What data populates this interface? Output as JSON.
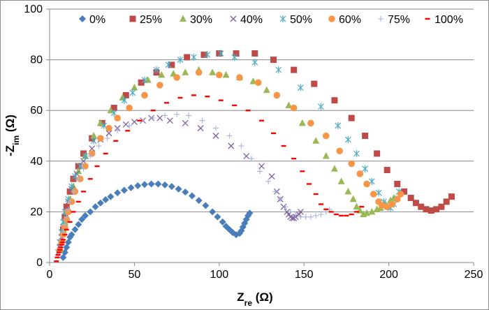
{
  "chart_data": {
    "type": "scatter",
    "xlabel": {
      "main": "Z",
      "sub": "re",
      "unit": " (Ω)"
    },
    "ylabel": {
      "main": "-Z",
      "sub": "im",
      "unit": " (Ω)"
    },
    "xlim": [
      0,
      250
    ],
    "ylim": [
      0,
      100
    ],
    "x_ticks": [
      0,
      50,
      100,
      150,
      200,
      250
    ],
    "y_ticks": [
      0,
      20,
      40,
      60,
      80,
      100
    ],
    "grid": "horizontal",
    "legend_position": "top",
    "series": [
      {
        "name": "0%",
        "marker": "diamond",
        "color": "#4a7ebb",
        "points": [
          [
            8,
            2
          ],
          [
            9,
            4
          ],
          [
            10,
            6
          ],
          [
            11,
            8
          ],
          [
            12,
            10
          ],
          [
            13,
            11
          ],
          [
            15,
            13
          ],
          [
            17,
            15
          ],
          [
            19,
            17
          ],
          [
            21,
            18.5
          ],
          [
            24,
            20
          ],
          [
            27,
            22
          ],
          [
            30,
            23.5
          ],
          [
            33,
            24.8
          ],
          [
            36,
            26
          ],
          [
            40,
            27.5
          ],
          [
            44,
            28.5
          ],
          [
            48,
            29.5
          ],
          [
            52,
            30.3
          ],
          [
            56,
            30.8
          ],
          [
            60,
            31
          ],
          [
            64,
            31
          ],
          [
            68,
            30.6
          ],
          [
            72,
            30
          ],
          [
            76,
            29
          ],
          [
            80,
            27.8
          ],
          [
            84,
            26.3
          ],
          [
            88,
            24.5
          ],
          [
            92,
            22.5
          ],
          [
            96,
            20
          ],
          [
            99,
            18
          ],
          [
            102,
            16
          ],
          [
            104,
            14.3
          ],
          [
            106,
            13
          ],
          [
            108,
            11.8
          ],
          [
            110,
            11
          ],
          [
            112,
            11.5
          ],
          [
            113,
            12.5
          ],
          [
            114,
            14
          ],
          [
            115,
            15.5
          ],
          [
            116,
            17
          ],
          [
            117,
            18.5
          ],
          [
            118,
            19.5
          ]
        ]
      },
      {
        "name": "25%",
        "marker": "square",
        "color": "#be4b48",
        "points": [
          [
            7,
            8
          ],
          [
            8,
            13
          ],
          [
            9,
            18
          ],
          [
            10,
            22
          ],
          [
            12,
            28
          ],
          [
            14,
            33
          ],
          [
            17,
            38
          ],
          [
            20,
            43
          ],
          [
            25,
            49
          ],
          [
            31,
            55
          ],
          [
            38,
            61
          ],
          [
            45,
            66
          ],
          [
            54,
            71
          ],
          [
            63,
            75
          ],
          [
            72,
            78
          ],
          [
            81,
            81
          ],
          [
            91,
            82
          ],
          [
            100,
            82.5
          ],
          [
            110,
            82.5
          ],
          [
            121,
            82.5
          ],
          [
            132,
            80
          ],
          [
            144,
            76
          ],
          [
            156,
            70.5
          ],
          [
            168,
            64
          ],
          [
            178,
            57
          ],
          [
            186,
            50
          ],
          [
            193,
            43
          ],
          [
            199,
            36.5
          ],
          [
            205,
            31
          ],
          [
            209,
            28
          ],
          [
            213,
            25.5
          ],
          [
            216,
            23.5
          ],
          [
            219,
            22
          ],
          [
            222,
            21
          ],
          [
            225,
            20.5
          ],
          [
            228,
            21
          ],
          [
            231,
            22
          ],
          [
            234,
            24
          ],
          [
            237,
            26
          ]
        ]
      },
      {
        "name": "30%",
        "marker": "triangle",
        "color": "#98b954",
        "points": [
          [
            6,
            5
          ],
          [
            7,
            9
          ],
          [
            8,
            13
          ],
          [
            9,
            16
          ],
          [
            10,
            20
          ],
          [
            12,
            25
          ],
          [
            14,
            30
          ],
          [
            17,
            36
          ],
          [
            21,
            42
          ],
          [
            26,
            50
          ],
          [
            30,
            55
          ],
          [
            36,
            60
          ],
          [
            43,
            65
          ],
          [
            50,
            69
          ],
          [
            58,
            72
          ],
          [
            66,
            74
          ],
          [
            73,
            74.5
          ],
          [
            80,
            75
          ],
          [
            88,
            76
          ],
          [
            96,
            75
          ],
          [
            104,
            74
          ],
          [
            112,
            73
          ],
          [
            120,
            71.5
          ],
          [
            128,
            68
          ],
          [
            141,
            62
          ],
          [
            149,
            55
          ],
          [
            157,
            48
          ],
          [
            163,
            42
          ],
          [
            168,
            37
          ],
          [
            172,
            32
          ],
          [
            176,
            28
          ],
          [
            179,
            25
          ],
          [
            181,
            22
          ],
          [
            183,
            20.5
          ],
          [
            185,
            19
          ],
          [
            187,
            19.5
          ],
          [
            190,
            20
          ],
          [
            193,
            21
          ],
          [
            195,
            21.5
          ],
          [
            198,
            23
          ],
          [
            201,
            24.5
          ],
          [
            203,
            25.5
          ]
        ]
      },
      {
        "name": "40%",
        "marker": "x",
        "color": "#7d60a0",
        "points": [
          [
            6,
            6
          ],
          [
            7,
            10
          ],
          [
            8,
            14
          ],
          [
            9,
            18
          ],
          [
            11,
            24
          ],
          [
            13,
            29
          ],
          [
            16,
            35
          ],
          [
            20,
            40
          ],
          [
            25,
            45
          ],
          [
            30,
            48.5
          ],
          [
            35,
            51
          ],
          [
            40,
            53
          ],
          [
            45,
            54.5
          ],
          [
            50,
            55.5
          ],
          [
            55,
            56
          ],
          [
            60,
            57
          ],
          [
            65,
            57
          ],
          [
            71,
            56
          ],
          [
            80,
            55
          ],
          [
            89,
            53
          ],
          [
            98,
            50
          ],
          [
            107,
            46
          ],
          [
            116,
            42
          ],
          [
            125,
            38
          ],
          [
            131,
            34
          ],
          [
            134,
            28
          ],
          [
            136,
            25
          ],
          [
            138,
            22
          ],
          [
            140,
            20
          ],
          [
            141,
            19
          ],
          [
            142,
            18
          ],
          [
            143,
            17.5
          ],
          [
            144,
            17.5
          ],
          [
            145,
            18
          ],
          [
            147,
            19
          ],
          [
            148,
            20
          ]
        ]
      },
      {
        "name": "50%",
        "marker": "asterisk",
        "color": "#4bacc6",
        "points": [
          [
            5,
            4
          ],
          [
            6,
            8
          ],
          [
            7,
            12
          ],
          [
            8,
            16
          ],
          [
            9,
            20
          ],
          [
            11,
            25
          ],
          [
            13,
            30
          ],
          [
            15,
            34
          ],
          [
            18,
            38
          ],
          [
            21,
            42
          ],
          [
            26,
            48
          ],
          [
            32,
            54
          ],
          [
            38,
            59
          ],
          [
            44,
            64
          ],
          [
            49,
            67
          ],
          [
            56,
            72
          ],
          [
            63,
            76
          ],
          [
            70,
            78
          ],
          [
            77,
            80
          ],
          [
            85,
            81
          ],
          [
            93,
            82
          ],
          [
            101,
            82.5
          ],
          [
            109,
            81
          ],
          [
            121,
            79
          ],
          [
            135,
            76
          ],
          [
            148,
            69
          ],
          [
            160,
            61.5
          ],
          [
            170,
            54
          ],
          [
            176,
            48.5
          ],
          [
            181,
            43
          ],
          [
            186,
            37
          ],
          [
            190,
            32
          ],
          [
            194,
            27.5
          ],
          [
            197,
            24
          ],
          [
            199,
            22
          ],
          [
            201,
            21.5
          ],
          [
            203,
            23
          ],
          [
            204,
            25
          ],
          [
            206,
            28
          ]
        ]
      },
      {
        "name": "60%",
        "marker": "circle",
        "color": "#f79646",
        "points": [
          [
            6,
            5
          ],
          [
            7,
            8
          ],
          [
            8,
            11
          ],
          [
            9,
            14
          ],
          [
            10,
            17
          ],
          [
            11,
            20
          ],
          [
            13,
            24
          ],
          [
            15,
            28
          ],
          [
            18,
            33
          ],
          [
            21,
            38
          ],
          [
            25,
            43
          ],
          [
            30,
            49
          ],
          [
            35,
            53
          ],
          [
            40,
            57
          ],
          [
            47,
            61
          ],
          [
            56,
            66
          ],
          [
            65,
            70
          ],
          [
            75,
            73
          ],
          [
            88,
            75
          ],
          [
            100,
            74
          ],
          [
            112,
            73
          ],
          [
            123,
            71
          ],
          [
            134,
            66
          ],
          [
            144,
            61
          ],
          [
            154,
            55
          ],
          [
            163,
            50
          ],
          [
            171,
            44
          ],
          [
            178,
            39
          ],
          [
            183,
            35
          ],
          [
            187,
            31
          ],
          [
            191,
            27
          ],
          [
            194,
            24
          ],
          [
            196,
            22.5
          ],
          [
            199,
            22
          ],
          [
            202,
            23
          ],
          [
            205,
            25
          ],
          [
            207,
            27
          ]
        ]
      },
      {
        "name": "75%",
        "marker": "plus",
        "color": "#a5b4d8",
        "points": [
          [
            5,
            3
          ],
          [
            6,
            6
          ],
          [
            7,
            9
          ],
          [
            8,
            12
          ],
          [
            9,
            15
          ],
          [
            10,
            18
          ],
          [
            11,
            21
          ],
          [
            12,
            24
          ],
          [
            14,
            28
          ],
          [
            17,
            33
          ],
          [
            20,
            37
          ],
          [
            24,
            42
          ],
          [
            29,
            46
          ],
          [
            34,
            49
          ],
          [
            40,
            52
          ],
          [
            47,
            54
          ],
          [
            54,
            56
          ],
          [
            61,
            57
          ],
          [
            68,
            58
          ],
          [
            75,
            58.5
          ],
          [
            82,
            58
          ],
          [
            90,
            56
          ],
          [
            98,
            53
          ],
          [
            106,
            50
          ],
          [
            113,
            46
          ],
          [
            119,
            41
          ],
          [
            124,
            36
          ],
          [
            129,
            32
          ],
          [
            133,
            28
          ],
          [
            136,
            25
          ],
          [
            139,
            22
          ],
          [
            142,
            20
          ],
          [
            145,
            19
          ],
          [
            148,
            18
          ],
          [
            151,
            18
          ],
          [
            154,
            18
          ],
          [
            157,
            18.5
          ],
          [
            160,
            19
          ],
          [
            163,
            20
          ],
          [
            165,
            21
          ]
        ]
      },
      {
        "name": "100%",
        "marker": "dash",
        "color": "#ff0000",
        "points": [
          [
            4,
            0.5
          ],
          [
            4.5,
            2
          ],
          [
            5,
            3
          ],
          [
            5.5,
            4
          ],
          [
            6,
            5
          ],
          [
            6.5,
            6
          ],
          [
            7,
            7
          ],
          [
            7.5,
            8
          ],
          [
            8,
            9
          ],
          [
            9,
            11
          ],
          [
            10,
            13
          ],
          [
            12,
            16
          ],
          [
            14,
            20
          ],
          [
            17,
            24
          ],
          [
            20,
            28
          ],
          [
            24,
            33
          ],
          [
            28,
            38
          ],
          [
            33,
            43
          ],
          [
            39,
            48
          ],
          [
            46,
            52
          ],
          [
            53,
            56
          ],
          [
            61,
            60
          ],
          [
            69,
            63
          ],
          [
            77,
            65
          ],
          [
            85,
            66
          ],
          [
            93,
            65.5
          ],
          [
            101,
            64
          ],
          [
            109,
            62
          ],
          [
            117,
            60
          ],
          [
            125,
            56
          ],
          [
            132,
            51
          ],
          [
            138,
            46
          ],
          [
            144,
            41
          ],
          [
            149,
            36
          ],
          [
            153,
            31
          ],
          [
            157,
            27
          ],
          [
            160,
            23
          ],
          [
            163,
            21
          ],
          [
            166,
            20
          ],
          [
            169,
            19
          ],
          [
            172,
            18.5
          ],
          [
            175,
            18.5
          ],
          [
            178,
            19
          ],
          [
            181,
            20
          ],
          [
            184,
            22
          ]
        ]
      }
    ]
  }
}
